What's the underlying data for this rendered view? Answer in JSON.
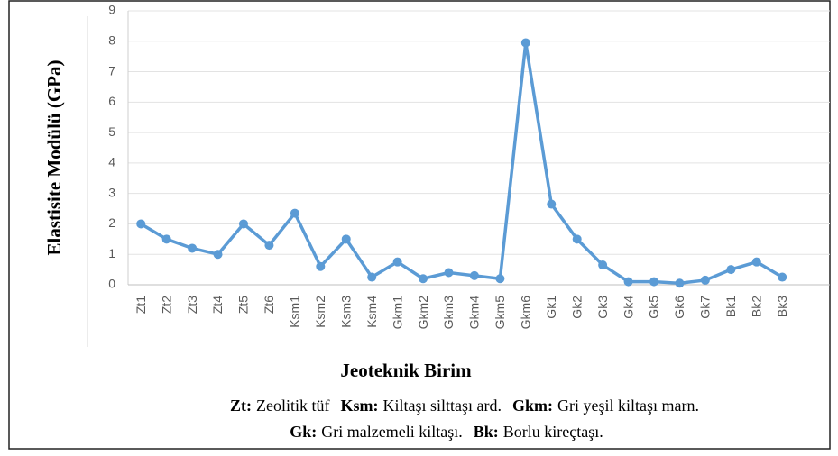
{
  "chart_data": {
    "type": "line",
    "y_label": "Elastisite Modülü (GPa)",
    "x_label": "Jeoteknik Birim",
    "categories": [
      "Zt1",
      "Zt2",
      "Zt3",
      "Zt4",
      "Zt5",
      "Zt6",
      "Ksm1",
      "Ksm2",
      "Ksm3",
      "Ksm4",
      "Gkm1",
      "Gkm2",
      "Gkm3",
      "Gkm4",
      "Gkm5",
      "Gkm6",
      "Gk1",
      "Gk2",
      "Gk3",
      "Gk4",
      "Gk5",
      "Gk6",
      "Gk7",
      "Bk1",
      "Bk2",
      "Bk3"
    ],
    "values": [
      2.0,
      1.5,
      1.2,
      1.0,
      2.0,
      1.3,
      2.35,
      0.6,
      1.5,
      0.25,
      0.75,
      0.2,
      0.4,
      0.3,
      0.2,
      7.95,
      2.65,
      1.5,
      0.65,
      0.1,
      0.1,
      0.05,
      0.15,
      0.5,
      0.75,
      0.25
    ],
    "color": "#5b9bd5",
    "ylim": [
      0,
      9
    ],
    "yticks": [
      0,
      1,
      2,
      3,
      4,
      5,
      6,
      7,
      8,
      9
    ],
    "grid": true,
    "legend_lines": [
      [
        {
          "abbr": "Zt:",
          "text": "Zeolitik tüf"
        },
        {
          "abbr": "Ksm:",
          "text": "Kiltaşı silttaşı ard."
        },
        {
          "abbr": "Gkm:",
          "text": "Gri yeşil kiltaşı marn."
        }
      ],
      [
        {
          "abbr": "Gk:",
          "text": "Gri malzemeli kiltaşı."
        },
        {
          "abbr": "Bk:",
          "text": "Borlu kireçtaşı."
        }
      ]
    ]
  }
}
